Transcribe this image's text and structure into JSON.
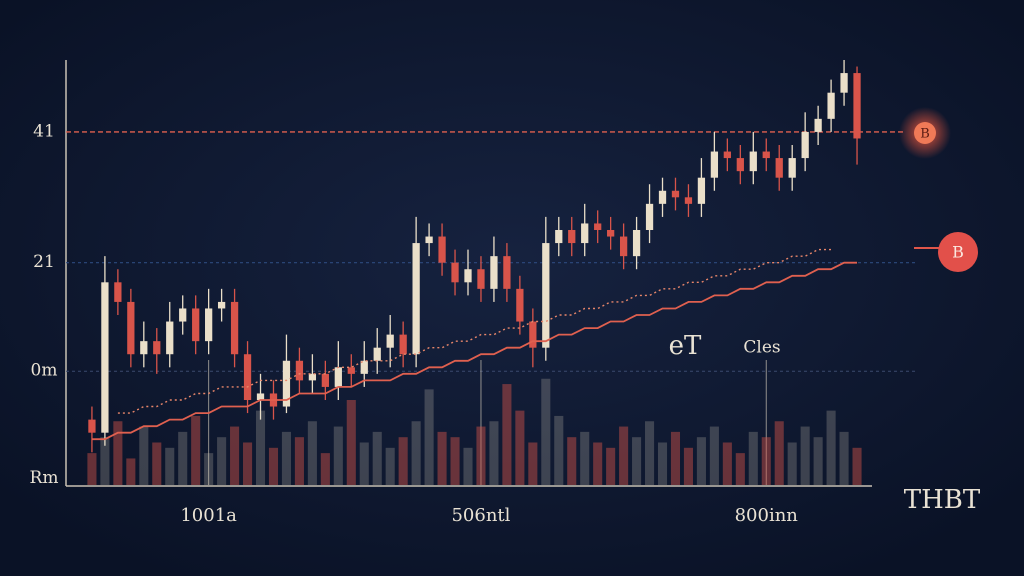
{
  "chart_data": {
    "type": "candlestick",
    "x": [
      0,
      1,
      2,
      3,
      4,
      5,
      6,
      7,
      8,
      9,
      10,
      11,
      12,
      13,
      14,
      15,
      16,
      17,
      18,
      19,
      20,
      21,
      22,
      23,
      24,
      25,
      26,
      27,
      28,
      29,
      30,
      31,
      32,
      33,
      34,
      35,
      36,
      37,
      38,
      39,
      40,
      41,
      42,
      43,
      44,
      45,
      46,
      47,
      48,
      49,
      50,
      51,
      52,
      53,
      54,
      55,
      56,
      57,
      58,
      59
    ],
    "open": [
      -3,
      -5,
      18,
      15,
      7,
      9,
      7,
      12,
      14,
      9,
      14,
      15,
      7,
      0,
      1,
      -1,
      6,
      3,
      4,
      2,
      5,
      4,
      6,
      8,
      10,
      7,
      24,
      25,
      21,
      18,
      20,
      17,
      22,
      17,
      12,
      8,
      24,
      26,
      24,
      27,
      26,
      25,
      22,
      26,
      30,
      32,
      31,
      30,
      34,
      38,
      37,
      35,
      38,
      37,
      34,
      37,
      41,
      43,
      47,
      50
    ],
    "high": [
      -1,
      22,
      20,
      17,
      12,
      11,
      15,
      16,
      16,
      17,
      17,
      17,
      9,
      4,
      3,
      10,
      8,
      7,
      6,
      9,
      7,
      9,
      11,
      13,
      12,
      28,
      27,
      27,
      23,
      23,
      22,
      25,
      24,
      19,
      14,
      28,
      28,
      28,
      30,
      29,
      28,
      27,
      28,
      33,
      34,
      34,
      33,
      37,
      41,
      40,
      39,
      41,
      40,
      39,
      39,
      44,
      45,
      49,
      52,
      51
    ],
    "low": [
      -8,
      -7,
      13,
      5,
      5,
      4,
      5,
      10,
      7,
      7,
      12,
      5,
      -2,
      -3,
      -3,
      -2,
      1,
      1,
      0,
      0,
      2,
      2,
      4,
      5,
      5,
      5,
      22,
      19,
      16,
      16,
      15,
      15,
      15,
      10,
      5,
      6,
      22,
      22,
      22,
      24,
      23,
      20,
      20,
      24,
      28,
      29,
      28,
      28,
      32,
      35,
      33,
      33,
      35,
      32,
      32,
      35,
      39,
      41,
      45,
      36
    ],
    "close": [
      -5,
      18,
      15,
      7,
      9,
      7,
      12,
      14,
      9,
      14,
      15,
      7,
      0,
      1,
      -1,
      6,
      3,
      4,
      2,
      5,
      4,
      6,
      8,
      10,
      7,
      24,
      25,
      21,
      18,
      20,
      17,
      22,
      17,
      12,
      8,
      24,
      26,
      24,
      27,
      26,
      25,
      22,
      26,
      30,
      32,
      31,
      30,
      34,
      38,
      37,
      35,
      38,
      37,
      34,
      37,
      41,
      43,
      47,
      50,
      40
    ],
    "up_color": "#eadfc9",
    "down_color": "#d8544a",
    "series": [
      {
        "color": "#e0604f",
        "style": "solid",
        "values": [
          -6,
          -6,
          -5,
          -5,
          -4,
          -4,
          -3,
          -3,
          -2,
          -2,
          -1,
          -1,
          -1,
          0,
          0,
          0,
          1,
          1,
          1,
          2,
          2,
          3,
          3,
          3,
          4,
          4,
          5,
          5,
          6,
          6,
          7,
          7,
          8,
          8,
          9,
          9,
          10,
          10,
          11,
          11,
          12,
          12,
          13,
          13,
          14,
          14,
          15,
          15,
          16,
          16,
          17,
          17,
          18,
          18,
          19,
          19,
          20,
          20,
          21,
          21
        ]
      },
      {
        "color": "#e8866a",
        "style": "dotted",
        "values": [
          null,
          null,
          -2,
          -2,
          -1,
          -1,
          0,
          0,
          1,
          1,
          2,
          2,
          2,
          3,
          3,
          3,
          4,
          4,
          4,
          5,
          5,
          6,
          6,
          6,
          7,
          7,
          8,
          8,
          9,
          9,
          10,
          10,
          11,
          11,
          12,
          12,
          13,
          13,
          14,
          14,
          15,
          15,
          16,
          16,
          17,
          17,
          18,
          18,
          19,
          19,
          20,
          20,
          21,
          21,
          22,
          22,
          23,
          23,
          null,
          null
        ]
      },
      {
        "axis": "y2",
        "kind": "volume",
        "values": [
          30,
          45,
          60,
          25,
          55,
          40,
          35,
          50,
          65,
          30,
          45,
          55,
          40,
          70,
          35,
          50,
          45,
          60,
          30,
          55,
          80,
          40,
          50,
          35,
          45,
          60,
          90,
          50,
          45,
          35,
          55,
          60,
          95,
          70,
          40,
          100,
          65,
          45,
          50,
          40,
          35,
          55,
          45,
          60,
          40,
          50,
          35,
          45,
          55,
          40,
          30,
          50,
          45,
          60,
          40,
          55,
          45,
          70,
          50,
          35
        ]
      }
    ],
    "xlim": [
      -2,
      60
    ],
    "xticks": [
      {
        "value": 9,
        "label": "1001a"
      },
      {
        "value": 30,
        "label": "506ntl"
      },
      {
        "value": 52,
        "label": "800inn"
      }
    ],
    "ylim": [
      -13,
      52
    ],
    "yticks": [
      41,
      21,
      {
        "value": 4.4,
        "label": "0m"
      },
      {
        "value": -12,
        "label": "Rm"
      }
    ],
    "y2lim": [
      0,
      400
    ],
    "grid": true,
    "annotations": [
      "eT",
      "Cles",
      "THBT",
      "B",
      "B"
    ]
  }
}
